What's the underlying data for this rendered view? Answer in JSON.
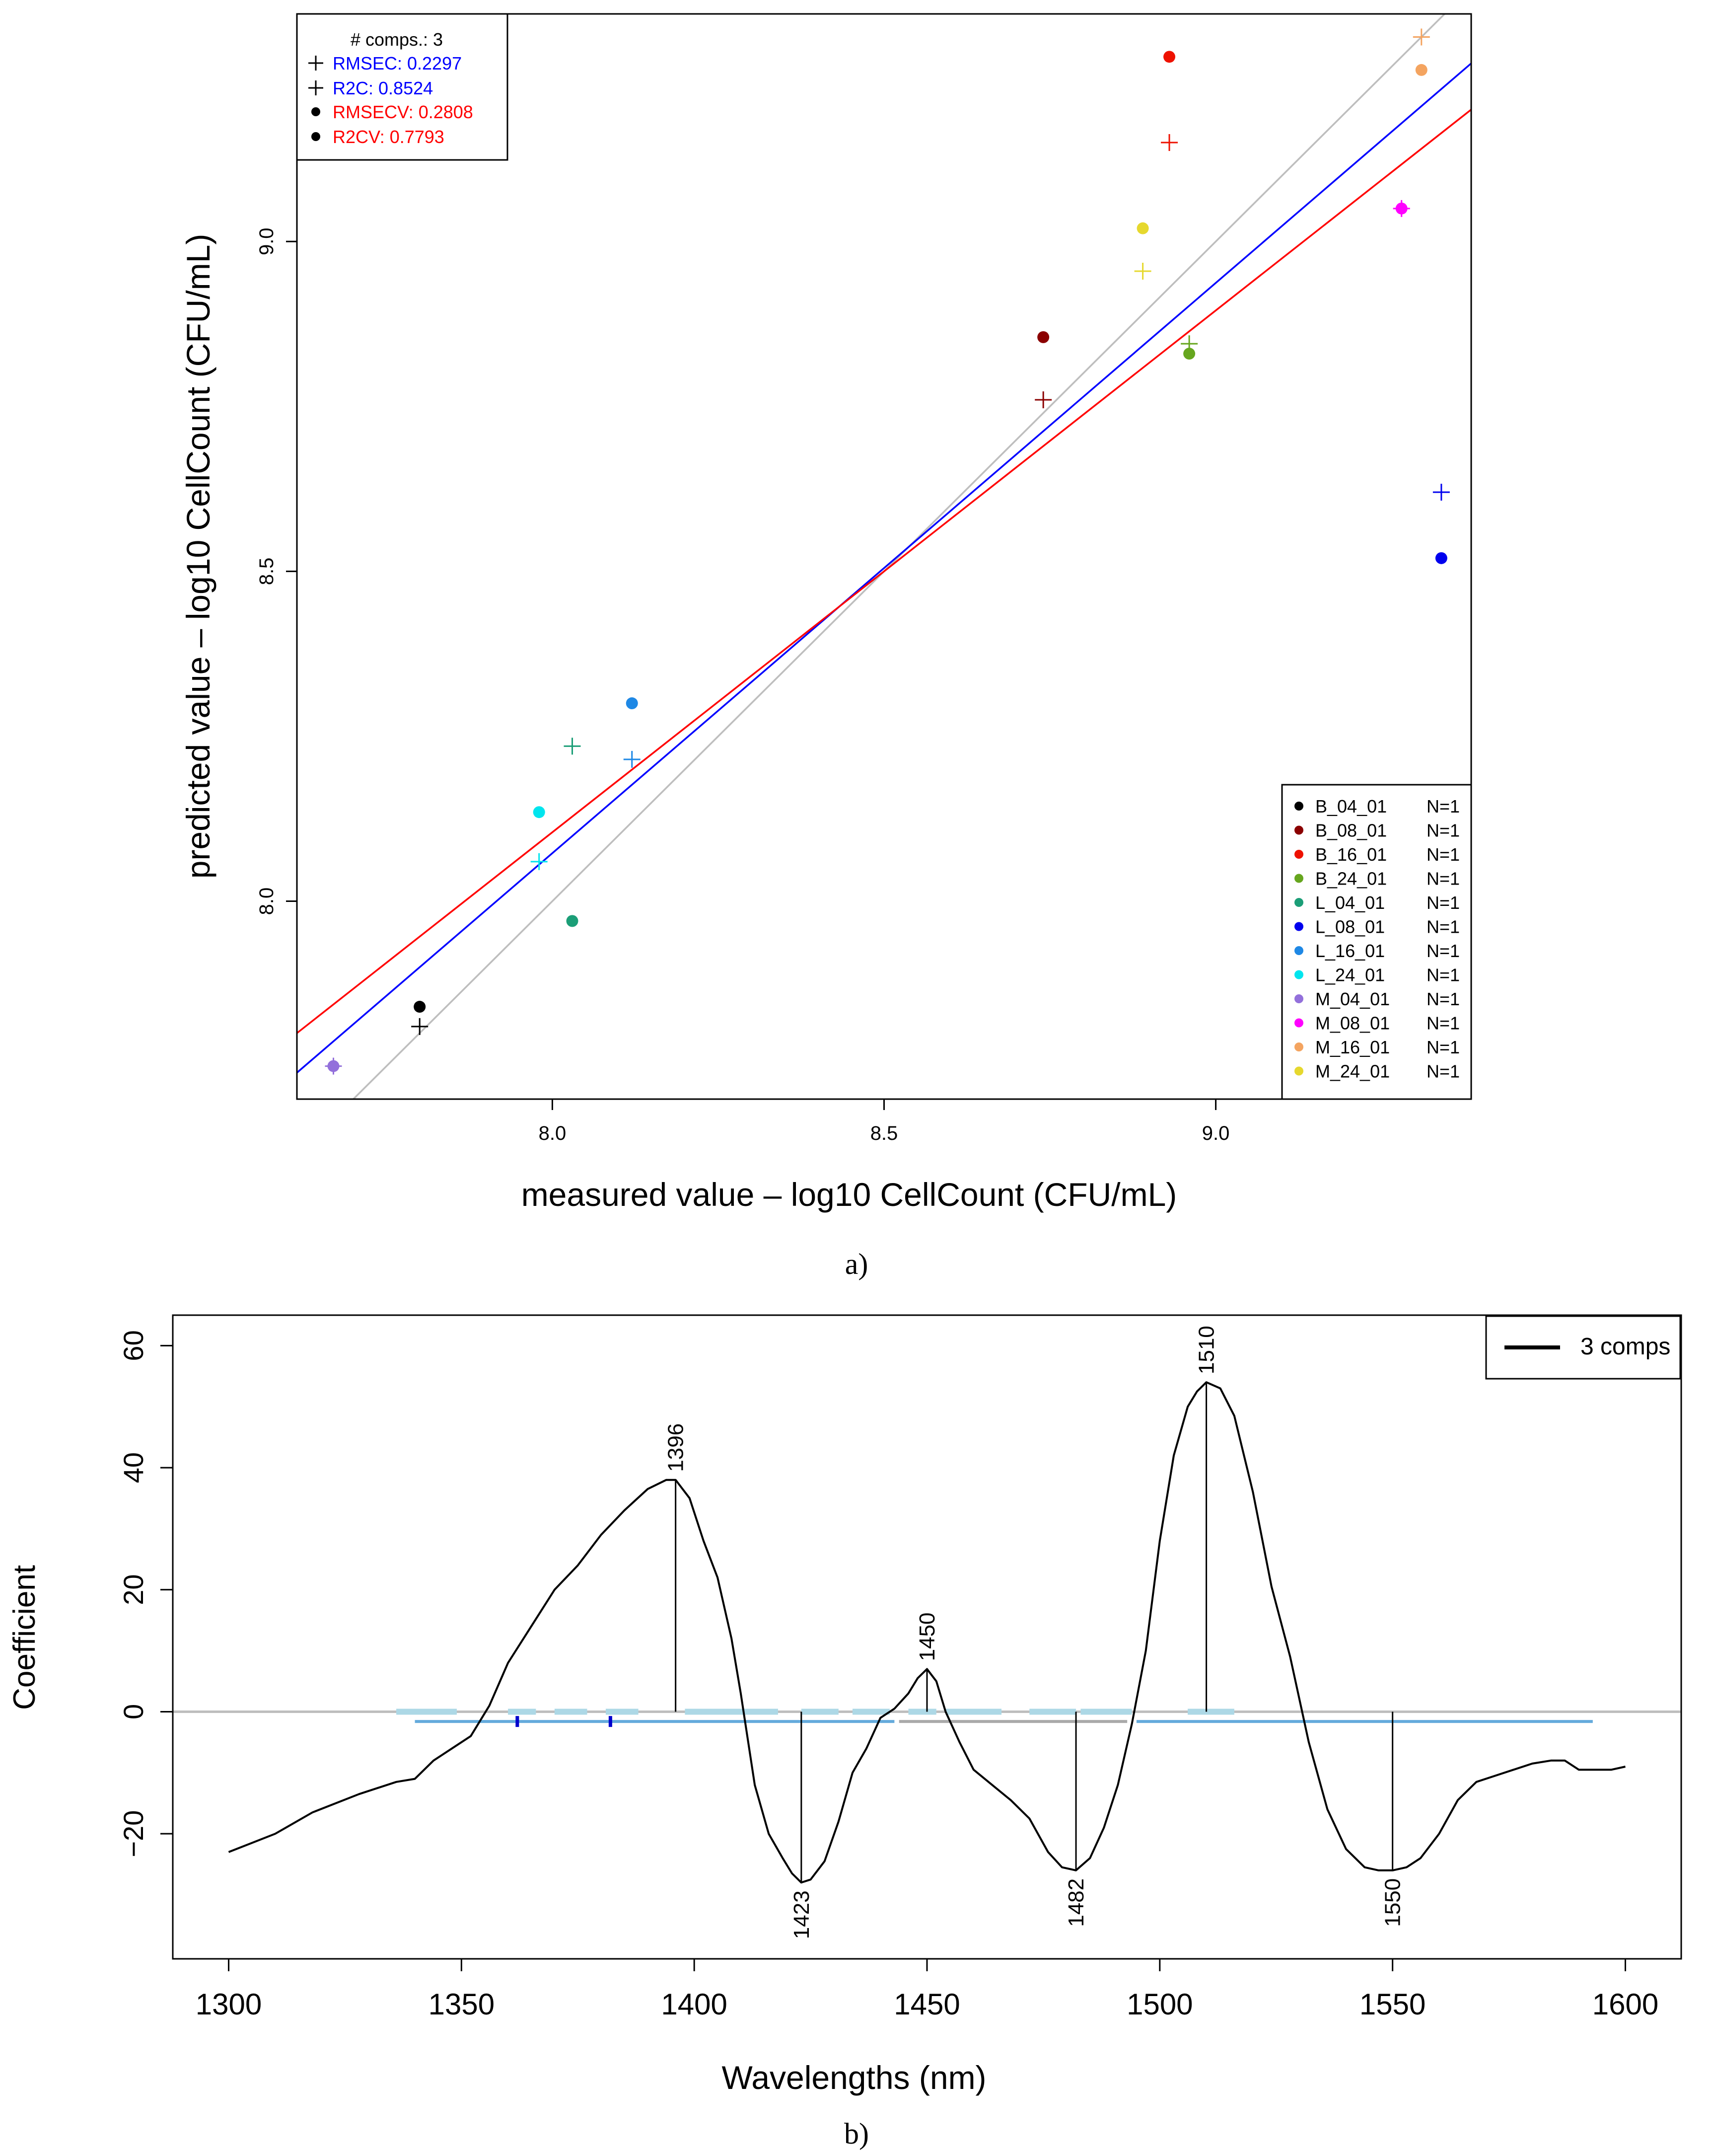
{
  "chart_data": [
    {
      "type": "scatter",
      "panel_label": "a)",
      "xlabel": "measured value – log10 CellCount (CFU/mL)",
      "ylabel": "predicted value – log10 CellCount (CFU/mL)",
      "xlim": [
        7.615,
        9.385
      ],
      "ylim": [
        7.7,
        9.345
      ],
      "xticks": [
        8.0,
        8.5,
        9.0
      ],
      "xtick_labels": [
        "8.0",
        "8.5",
        "9.0"
      ],
      "yticks": [
        8.0,
        8.5,
        9.0
      ],
      "ytick_labels": [
        "8.0",
        "8.5",
        "9.0"
      ],
      "stats_legend": {
        "comps": "# comps.: 3",
        "rmsec": "RMSEC: 0.2297",
        "r2c": "R2C: 0.8524",
        "rmsecv": "RMSECV: 0.2808",
        "r2cv": "R2CV: 0.7793",
        "rmsec_color": "#0000ff",
        "r2c_color": "#0000ff",
        "rmsecv_color": "#ff0000",
        "r2cv_color": "#ff0000"
      },
      "lines": [
        {
          "name": "target",
          "color": "#bebebe",
          "x": [
            7.6,
            9.4
          ],
          "y": [
            7.6,
            9.4
          ]
        },
        {
          "name": "calibration fit",
          "color": "#0000ff",
          "x": [
            7.615,
            9.385
          ],
          "y": [
            7.74,
            9.27
          ]
        },
        {
          "name": "cross-validation fit",
          "color": "#ff0000",
          "x": [
            7.615,
            9.385
          ],
          "y": [
            7.8,
            9.2
          ]
        }
      ],
      "points": [
        {
          "sample": "B_04_01",
          "n": "N=1",
          "color": "#000000",
          "x": 7.8,
          "cal": 7.81,
          "cv": 7.84
        },
        {
          "sample": "B_08_01",
          "n": "N=1",
          "color": "#8b0000",
          "x": 8.74,
          "cal": 8.76,
          "cv": 8.855
        },
        {
          "sample": "B_16_01",
          "n": "N=1",
          "color": "#ee1100",
          "x": 8.93,
          "cal": 9.15,
          "cv": 9.28
        },
        {
          "sample": "B_24_01",
          "n": "N=1",
          "color": "#66a61e",
          "x": 8.96,
          "cal": 8.845,
          "cv": 8.83
        },
        {
          "sample": "L_04_01",
          "n": "N=1",
          "color": "#1b9e77",
          "x": 8.03,
          "cal": 8.235,
          "cv": 7.97
        },
        {
          "sample": "L_08_01",
          "n": "N=1",
          "color": "#0000ee",
          "x": 9.34,
          "cal": 8.62,
          "cv": 8.52
        },
        {
          "sample": "L_16_01",
          "n": "N=1",
          "color": "#1e88e5",
          "x": 8.12,
          "cal": 8.215,
          "cv": 8.3
        },
        {
          "sample": "L_24_01",
          "n": "N=1",
          "color": "#00e5ee",
          "x": 7.98,
          "cal": 8.06,
          "cv": 8.135
        },
        {
          "sample": "M_04_01",
          "n": "N=1",
          "color": "#9370db",
          "x": 7.67,
          "cal": 7.75,
          "cv": 7.75
        },
        {
          "sample": "M_08_01",
          "n": "N=1",
          "color": "#ff00ff",
          "x": 9.28,
          "cal": 9.05,
          "cv": 9.05
        },
        {
          "sample": "M_16_01",
          "n": "N=1",
          "color": "#f4a460",
          "x": 9.31,
          "cal": 9.31,
          "cv": 9.26
        },
        {
          "sample": "M_24_01",
          "n": "N=1",
          "color": "#e6d82e",
          "x": 8.89,
          "cal": 8.955,
          "cv": 9.02
        }
      ]
    },
    {
      "type": "line",
      "panel_label": "b)",
      "xlabel": "Wavelengths (nm)",
      "ylabel": "Coefficient",
      "xlim": [
        1288,
        1612
      ],
      "ylim": [
        -40.5,
        65
      ],
      "xticks": [
        1300,
        1350,
        1400,
        1450,
        1500,
        1550,
        1600
      ],
      "xtick_labels": [
        "1300",
        "1350",
        "1400",
        "1450",
        "1500",
        "1550",
        "1600"
      ],
      "yticks": [
        -20,
        0,
        20,
        40,
        60
      ],
      "ytick_labels": [
        "−20",
        "0",
        "20",
        "40",
        "60"
      ],
      "legend": {
        "label": "3 comps",
        "position": "top-right",
        "color": "#000000"
      },
      "series": [
        {
          "name": "3 comps",
          "color": "#000000",
          "x": [
            1300,
            1310,
            1318,
            1328,
            1336,
            1340,
            1344,
            1348,
            1352,
            1356,
            1360,
            1365,
            1370,
            1375,
            1380,
            1385,
            1390,
            1394,
            1396,
            1399,
            1402,
            1405,
            1408,
            1410,
            1413,
            1416,
            1419,
            1421,
            1423,
            1425,
            1428,
            1431,
            1434,
            1437,
            1440,
            1443,
            1446,
            1448,
            1450,
            1452,
            1454,
            1457,
            1460,
            1464,
            1468,
            1472,
            1476,
            1479,
            1482,
            1485,
            1488,
            1491,
            1494,
            1497,
            1500,
            1503,
            1506,
            1508,
            1510,
            1513,
            1516,
            1520,
            1524,
            1528,
            1532,
            1536,
            1540,
            1544,
            1547,
            1550,
            1553,
            1556,
            1560,
            1564,
            1568,
            1572,
            1576,
            1580,
            1584,
            1587,
            1590,
            1594,
            1597,
            1600
          ],
          "y": [
            -23,
            -20,
            -16.5,
            -13.5,
            -11.5,
            -11,
            -8,
            -6,
            -4,
            1,
            8,
            14,
            20,
            24,
            29,
            33,
            36.5,
            38,
            38,
            35,
            28,
            22,
            12,
            3,
            -12,
            -20,
            -24,
            -26.5,
            -28,
            -27.5,
            -24.5,
            -18,
            -10,
            -6,
            -1,
            0.5,
            3,
            5.5,
            7,
            5,
            0,
            -5,
            -9.5,
            -12,
            -14.5,
            -17.5,
            -23,
            -25.5,
            -26,
            -24,
            -19,
            -12,
            -2,
            10,
            28,
            42,
            50,
            52.5,
            54,
            53,
            48.5,
            36,
            20.5,
            9,
            -5,
            -16,
            -22.5,
            -25.5,
            -26,
            -26,
            -25.5,
            -24,
            -20,
            -14.5,
            -11.5,
            -10.5,
            -9.5,
            -8.5,
            -8,
            -8,
            -9.5,
            -9.5,
            -9.5,
            -9
          ]
        }
      ],
      "peak_labels": [
        {
          "label": "1396",
          "x": 1396,
          "y": 38,
          "side": "above"
        },
        {
          "label": "1423",
          "x": 1423,
          "y": -28,
          "side": "below"
        },
        {
          "label": "1450",
          "x": 1450,
          "y": 7,
          "side": "above"
        },
        {
          "label": "1482",
          "x": 1482,
          "y": -26,
          "side": "below"
        },
        {
          "label": "1510",
          "x": 1510,
          "y": 54,
          "side": "above"
        },
        {
          "label": "1550",
          "x": 1550,
          "y": -26,
          "side": "below"
        }
      ],
      "zero_line": {
        "y": 0,
        "color": "#bebebe"
      },
      "band_upper": {
        "color": "#add8e6",
        "y": 0,
        "segments": [
          [
            1336,
            1349
          ],
          [
            1360,
            1366
          ],
          [
            1370,
            1377
          ],
          [
            1381,
            1388
          ],
          [
            1398,
            1418
          ],
          [
            1423,
            1431
          ],
          [
            1434,
            1442
          ],
          [
            1446,
            1452
          ],
          [
            1454,
            1466
          ],
          [
            1472,
            1482
          ],
          [
            1483,
            1494
          ],
          [
            1506,
            1516
          ]
        ]
      },
      "band_lower": {
        "y": -1.6,
        "segments": [
          {
            "from": 1340,
            "to": 1443,
            "color": "#64aadc"
          },
          {
            "from": 1444,
            "to": 1493,
            "color": "#a9a9a9"
          },
          {
            "from": 1495,
            "to": 1593,
            "color": "#64aadc"
          }
        ]
      },
      "band_markers": [
        {
          "x": 1362,
          "y": -1.6,
          "color": "#0000cd"
        },
        {
          "x": 1382,
          "y": -1.6,
          "color": "#0000cd"
        }
      ]
    }
  ]
}
